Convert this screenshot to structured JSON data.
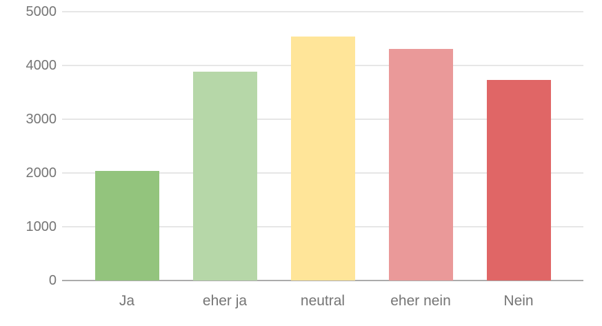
{
  "chart_data": {
    "type": "bar",
    "title": "",
    "xlabel": "",
    "ylabel": "",
    "categories": [
      "Ja",
      "eher ja",
      "neutral",
      "eher nein",
      "Nein"
    ],
    "values": [
      2040,
      3880,
      4540,
      4310,
      3730
    ],
    "ylim": [
      0,
      5000
    ],
    "yticks": [
      0,
      1000,
      2000,
      3000,
      4000,
      5000
    ],
    "ytick_labels": [
      "0",
      "1000",
      "2000",
      "3000",
      "4000",
      "5000"
    ],
    "grid": true,
    "legend": "none",
    "colors": {
      "bars": [
        "#93c47d",
        "#b6d7a8",
        "#ffe599",
        "#ea9999",
        "#e06666"
      ],
      "gridline": "#e6e6e6",
      "baseline": "#ababab",
      "axis_text": "#757575",
      "background": "#ffffff"
    }
  }
}
